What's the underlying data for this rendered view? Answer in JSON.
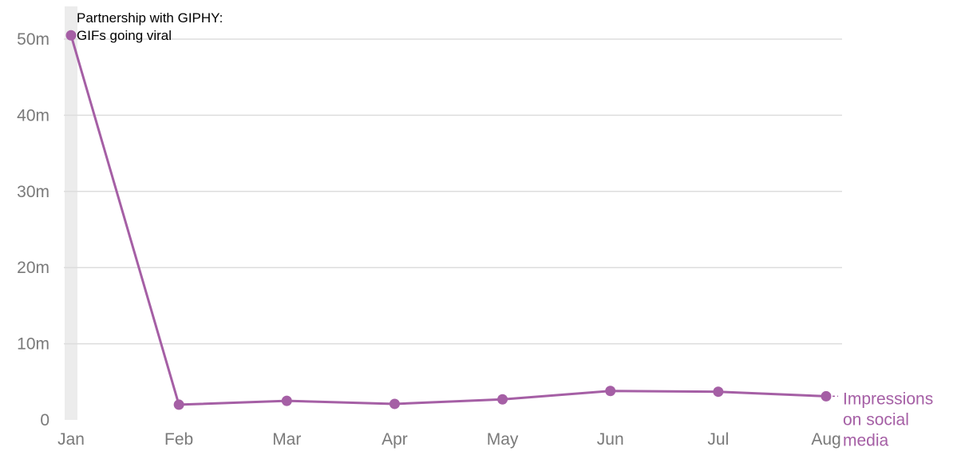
{
  "chart_data": {
    "type": "line",
    "categories": [
      "Jan",
      "Feb",
      "Mar",
      "Apr",
      "May",
      "Jun",
      "Jul",
      "Aug"
    ],
    "series": [
      {
        "name": "Impressions on social media",
        "label_lines": [
          "Impressions",
          "on social",
          "media"
        ],
        "values": [
          50.5,
          2.0,
          2.5,
          2.1,
          2.7,
          3.8,
          3.7,
          3.1
        ],
        "color": "#a55fa5"
      }
    ],
    "ylim": [
      0,
      50
    ],
    "y_ticks": [
      0,
      10,
      20,
      30,
      40,
      50
    ],
    "y_tick_labels": [
      "0",
      "10m",
      "20m",
      "30m",
      "40m",
      "50m"
    ],
    "grid": true,
    "highlight": {
      "category": "Jan",
      "color": "#ececec"
    },
    "annotation": {
      "category": "Jan",
      "lines": [
        "Partnership with GIPHY:",
        "GIFs going viral"
      ]
    }
  }
}
